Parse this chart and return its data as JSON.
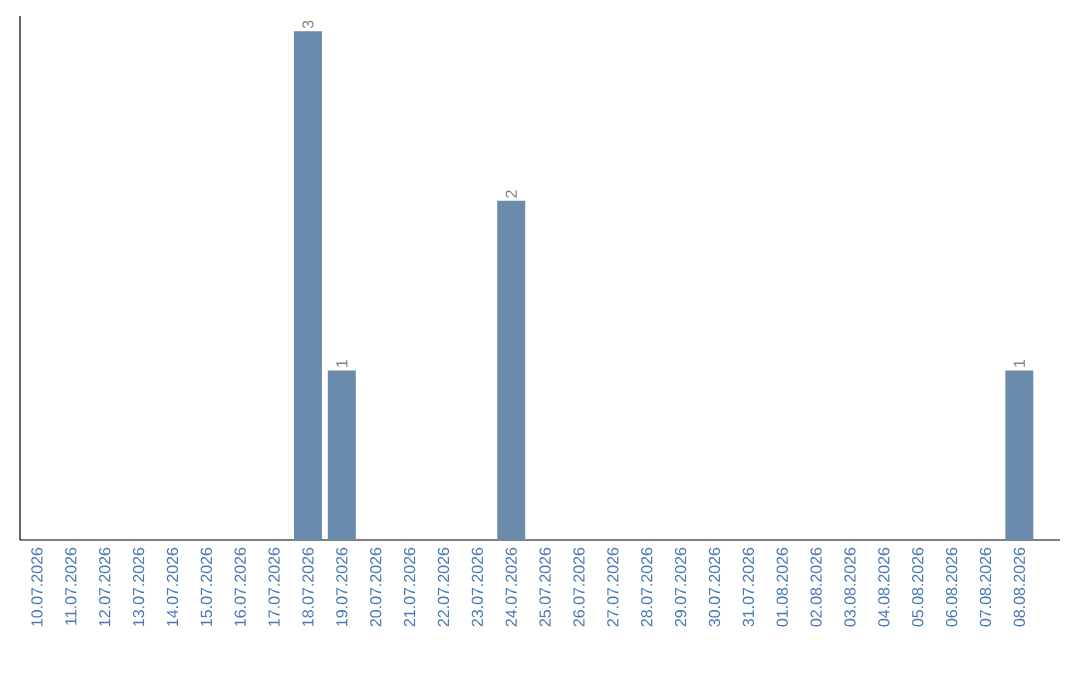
{
  "chart_data": {
    "type": "bar",
    "categories": [
      "10.07.2026",
      "11.07.2026",
      "12.07.2026",
      "13.07.2026",
      "14.07.2026",
      "15.07.2026",
      "16.07.2026",
      "17.07.2026",
      "18.07.2026",
      "19.07.2026",
      "20.07.2026",
      "21.07.2026",
      "22.07.2026",
      "23.07.2026",
      "24.07.2026",
      "25.07.2026",
      "26.07.2026",
      "27.07.2026",
      "28.07.2026",
      "29.07.2026",
      "30.07.2026",
      "31.07.2026",
      "01.08.2026",
      "02.08.2026",
      "03.08.2026",
      "04.08.2026",
      "05.08.2026",
      "06.08.2026",
      "07.08.2026",
      "08.08.2026"
    ],
    "values": [
      0,
      0,
      0,
      0,
      0,
      0,
      0,
      0,
      3,
      1,
      0,
      0,
      0,
      0,
      2,
      0,
      0,
      0,
      0,
      0,
      0,
      0,
      0,
      0,
      0,
      0,
      0,
      0,
      0,
      1
    ],
    "value_labels": [
      null,
      null,
      null,
      null,
      null,
      null,
      null,
      null,
      "3",
      "1",
      null,
      null,
      null,
      null,
      "2",
      null,
      null,
      null,
      null,
      null,
      null,
      null,
      null,
      null,
      null,
      null,
      null,
      null,
      null,
      "1"
    ],
    "color": "#6a8bab",
    "tick_labels": "x"
  }
}
